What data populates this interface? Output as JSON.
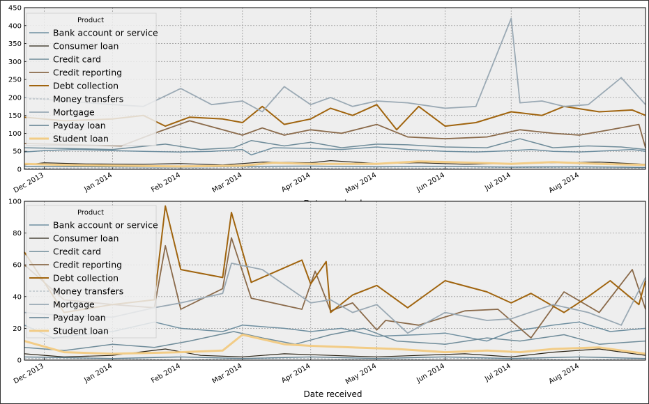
{
  "chart_data": [
    {
      "type": "line",
      "title": "",
      "xlabel": "Date received",
      "ylabel": "",
      "ylim": [
        0,
        450
      ],
      "yticks": [
        "0",
        "50",
        "100",
        "150",
        "200",
        "250",
        "300",
        "350",
        "400",
        "450"
      ],
      "xlim": [
        "2013-11-22",
        "2014-08-31"
      ],
      "xticks": [
        {
          "date": "2013-12-01",
          "label": "Dec 2013"
        },
        {
          "date": "2014-01-01",
          "label": "Jan 2014"
        },
        {
          "date": "2014-02-01",
          "label": "Feb 2014"
        },
        {
          "date": "2014-03-01",
          "label": "Mar 2014"
        },
        {
          "date": "2014-04-01",
          "label": "Apr 2014"
        },
        {
          "date": "2014-05-01",
          "label": "May 2014"
        },
        {
          "date": "2014-06-01",
          "label": "Jun 2014"
        },
        {
          "date": "2014-07-01",
          "label": "Jul 2014"
        },
        {
          "date": "2014-08-01",
          "label": "Aug 2014"
        }
      ],
      "grid": true,
      "legend": {
        "title": "Product",
        "placement": "upper-left"
      },
      "series": [
        {
          "name": "Bank account or service",
          "color": "#6f8fa0",
          "width": 1.5,
          "x": [
            "2013-11-22",
            "2013-12-01",
            "2013-12-15",
            "2014-01-01",
            "2014-01-15",
            "2014-02-01",
            "2014-02-15",
            "2014-03-01",
            "2014-03-05",
            "2014-03-15",
            "2014-04-01",
            "2014-04-15",
            "2014-05-01",
            "2014-05-15",
            "2014-06-01",
            "2014-06-15",
            "2014-07-01",
            "2014-07-10",
            "2014-07-20",
            "2014-08-01",
            "2014-08-15",
            "2014-08-25",
            "2014-08-31"
          ],
          "y": [
            48,
            52,
            55,
            52,
            50,
            48,
            50,
            55,
            40,
            60,
            58,
            55,
            62,
            55,
            50,
            48,
            52,
            55,
            50,
            48,
            52,
            55,
            50
          ]
        },
        {
          "name": "Consumer loan",
          "color": "#2b2416",
          "width": 1.2,
          "x": [
            "2013-11-22",
            "2013-12-01",
            "2013-12-20",
            "2014-01-15",
            "2014-02-01",
            "2014-02-20",
            "2014-03-10",
            "2014-04-01",
            "2014-04-10",
            "2014-05-01",
            "2014-05-20",
            "2014-06-10",
            "2014-07-01",
            "2014-07-20",
            "2014-08-10",
            "2014-08-31"
          ],
          "y": [
            12,
            18,
            15,
            14,
            16,
            12,
            20,
            18,
            24,
            16,
            18,
            14,
            16,
            18,
            20,
            14
          ]
        },
        {
          "name": "Credit card",
          "color": "#6e8b99",
          "width": 1.5,
          "x": [
            "2013-11-22",
            "2013-12-10",
            "2014-01-01",
            "2014-01-25",
            "2014-02-10",
            "2014-02-25",
            "2014-03-05",
            "2014-03-20",
            "2014-04-01",
            "2014-04-15",
            "2014-05-01",
            "2014-05-15",
            "2014-06-01",
            "2014-06-20",
            "2014-07-05",
            "2014-07-20",
            "2014-08-05",
            "2014-08-20",
            "2014-08-31"
          ],
          "y": [
            60,
            58,
            55,
            70,
            55,
            60,
            80,
            65,
            75,
            60,
            70,
            68,
            62,
            60,
            85,
            60,
            65,
            62,
            55
          ]
        },
        {
          "name": "Credit reporting",
          "color": "#8a6a4a",
          "width": 1.8,
          "x": [
            "2013-11-22",
            "2013-12-15",
            "2014-01-05",
            "2014-01-20",
            "2014-02-05",
            "2014-02-20",
            "2014-03-01",
            "2014-03-10",
            "2014-03-20",
            "2014-04-01",
            "2014-04-15",
            "2014-05-01",
            "2014-05-15",
            "2014-06-01",
            "2014-06-20",
            "2014-07-05",
            "2014-07-20",
            "2014-08-01",
            "2014-08-15",
            "2014-08-28",
            "2014-08-31"
          ],
          "y": [
            72,
            68,
            65,
            100,
            135,
            110,
            95,
            115,
            95,
            110,
            100,
            125,
            90,
            85,
            90,
            110,
            100,
            95,
            110,
            125,
            60
          ]
        },
        {
          "name": "Debt collection",
          "color": "#a0640e",
          "width": 2.0,
          "x": [
            "2013-11-22",
            "2013-12-10",
            "2014-01-01",
            "2014-01-15",
            "2014-01-25",
            "2014-02-05",
            "2014-02-20",
            "2014-03-01",
            "2014-03-10",
            "2014-03-20",
            "2014-04-01",
            "2014-04-10",
            "2014-04-20",
            "2014-05-01",
            "2014-05-10",
            "2014-05-20",
            "2014-06-01",
            "2014-06-15",
            "2014-07-01",
            "2014-07-15",
            "2014-07-25",
            "2014-08-10",
            "2014-08-25",
            "2014-08-31"
          ],
          "y": [
            145,
            135,
            140,
            150,
            120,
            145,
            140,
            130,
            175,
            125,
            140,
            170,
            150,
            180,
            110,
            175,
            120,
            130,
            160,
            150,
            175,
            160,
            165,
            150
          ]
        },
        {
          "name": "Money transfers",
          "color": "#a5b1b8",
          "width": 1.0,
          "x": [
            "2013-11-22",
            "2014-01-01",
            "2014-02-01",
            "2014-03-01",
            "2014-04-01",
            "2014-05-01",
            "2014-06-01",
            "2014-07-01",
            "2014-08-01",
            "2014-08-31"
          ],
          "y": [
            3,
            4,
            2,
            5,
            3,
            4,
            3,
            5,
            4,
            3
          ]
        },
        {
          "name": "Mortgage",
          "color": "#9aa9b4",
          "width": 1.8,
          "x": [
            "2013-11-22",
            "2013-12-10",
            "2014-01-01",
            "2014-01-15",
            "2014-02-01",
            "2014-02-15",
            "2014-03-01",
            "2014-03-10",
            "2014-03-20",
            "2014-04-01",
            "2014-04-10",
            "2014-04-20",
            "2014-05-01",
            "2014-05-15",
            "2014-06-01",
            "2014-06-15",
            "2014-07-01",
            "2014-07-05",
            "2014-07-15",
            "2014-07-25",
            "2014-08-05",
            "2014-08-20",
            "2014-08-31"
          ],
          "y": [
            200,
            190,
            180,
            175,
            225,
            180,
            190,
            160,
            230,
            180,
            200,
            175,
            190,
            185,
            170,
            175,
            420,
            185,
            190,
            175,
            180,
            255,
            180
          ]
        },
        {
          "name": "Payday loan",
          "color": "#5f7f8f",
          "width": 1.4,
          "x": [
            "2013-11-22",
            "2014-01-01",
            "2014-02-01",
            "2014-03-01",
            "2014-04-01",
            "2014-05-01",
            "2014-06-01",
            "2014-07-01",
            "2014-08-01",
            "2014-08-31"
          ],
          "y": [
            8,
            7,
            6,
            8,
            9,
            7,
            8,
            6,
            7,
            5
          ]
        },
        {
          "name": "Student loan",
          "color": "#f2cc86",
          "width": 3.0,
          "x": [
            "2013-11-22",
            "2013-12-10",
            "2014-01-01",
            "2014-02-01",
            "2014-03-01",
            "2014-03-15",
            "2014-04-01",
            "2014-05-01",
            "2014-05-20",
            "2014-06-15",
            "2014-07-01",
            "2014-07-20",
            "2014-08-10",
            "2014-08-31"
          ],
          "y": [
            15,
            12,
            10,
            8,
            10,
            18,
            15,
            15,
            22,
            18,
            15,
            20,
            15,
            12
          ]
        }
      ]
    },
    {
      "type": "line",
      "title": "",
      "xlabel": "Date received",
      "ylabel": "",
      "ylim": [
        0,
        100
      ],
      "yticks": [
        "0",
        "20",
        "40",
        "60",
        "80",
        "100"
      ],
      "xlim": [
        "2013-11-22",
        "2014-08-31"
      ],
      "xticks": [
        {
          "date": "2013-12-01",
          "label": "Dec 2013"
        },
        {
          "date": "2014-01-01",
          "label": "Jan 2014"
        },
        {
          "date": "2014-02-01",
          "label": "Feb 2014"
        },
        {
          "date": "2014-03-01",
          "label": "Mar 2014"
        },
        {
          "date": "2014-04-01",
          "label": "Apr 2014"
        },
        {
          "date": "2014-05-01",
          "label": "May 2014"
        },
        {
          "date": "2014-06-01",
          "label": "Jun 2014"
        },
        {
          "date": "2014-07-01",
          "label": "Jul 2014"
        },
        {
          "date": "2014-08-01",
          "label": "Aug 2014"
        }
      ],
      "grid": true,
      "legend": {
        "title": "Product",
        "placement": "upper-left"
      },
      "series": [
        {
          "name": "Bank account or service",
          "color": "#6f8fa0",
          "width": 1.5,
          "x": [
            "2013-11-22",
            "2013-12-05",
            "2014-01-01",
            "2014-01-20",
            "2014-02-01",
            "2014-02-20",
            "2014-03-01",
            "2014-03-20",
            "2014-04-01",
            "2014-04-15",
            "2014-05-01",
            "2014-05-20",
            "2014-06-01",
            "2014-06-20",
            "2014-07-01",
            "2014-07-20",
            "2014-08-01",
            "2014-08-15",
            "2014-08-31"
          ],
          "y": [
            22,
            14,
            18,
            24,
            20,
            18,
            22,
            20,
            18,
            20,
            15,
            16,
            17,
            12,
            18,
            22,
            24,
            18,
            20
          ]
        },
        {
          "name": "Consumer loan",
          "color": "#2b2416",
          "width": 1.2,
          "x": [
            "2013-11-22",
            "2013-12-10",
            "2014-01-01",
            "2014-01-25",
            "2014-02-10",
            "2014-03-01",
            "2014-03-20",
            "2014-04-10",
            "2014-05-01",
            "2014-05-20",
            "2014-06-10",
            "2014-07-01",
            "2014-07-20",
            "2014-08-10",
            "2014-08-31"
          ],
          "y": [
            4,
            2,
            3,
            7,
            3,
            2,
            4,
            3,
            2,
            3,
            4,
            2,
            5,
            7,
            3
          ]
        },
        {
          "name": "Credit card",
          "color": "#6e8b99",
          "width": 1.5,
          "x": [
            "2013-11-22",
            "2013-12-10",
            "2014-01-01",
            "2014-01-20",
            "2014-02-05",
            "2014-02-25",
            "2014-03-10",
            "2014-03-25",
            "2014-04-10",
            "2014-04-25",
            "2014-05-10",
            "2014-06-01",
            "2014-06-20",
            "2014-07-05",
            "2014-07-25",
            "2014-08-10",
            "2014-08-31"
          ],
          "y": [
            8,
            6,
            10,
            8,
            12,
            18,
            14,
            10,
            16,
            20,
            12,
            10,
            14,
            12,
            16,
            10,
            12
          ]
        },
        {
          "name": "Credit reporting",
          "color": "#8a6a4a",
          "width": 1.8,
          "x": [
            "2013-11-22",
            "2013-12-10",
            "2014-01-01",
            "2014-01-20",
            "2014-01-25",
            "2014-02-01",
            "2014-02-20",
            "2014-02-24",
            "2014-03-05",
            "2014-03-28",
            "2014-04-03",
            "2014-04-10",
            "2014-04-20",
            "2014-05-01",
            "2014-05-05",
            "2014-05-20",
            "2014-06-10",
            "2014-06-25",
            "2014-07-10",
            "2014-07-25",
            "2014-08-10",
            "2014-08-25",
            "2014-08-31"
          ],
          "y": [
            60,
            38,
            35,
            33,
            72,
            32,
            45,
            77,
            39,
            32,
            56,
            31,
            36,
            19,
            25,
            22,
            31,
            32,
            14,
            43,
            30,
            57,
            32
          ]
        },
        {
          "name": "Debt collection",
          "color": "#a0640e",
          "width": 2.0,
          "x": [
            "2013-11-22",
            "2013-12-10",
            "2014-01-01",
            "2014-01-20",
            "2014-01-25",
            "2014-02-01",
            "2014-02-20",
            "2014-02-24",
            "2014-03-05",
            "2014-03-28",
            "2014-04-01",
            "2014-04-08",
            "2014-04-10",
            "2014-04-20",
            "2014-05-01",
            "2014-05-15",
            "2014-06-01",
            "2014-06-20",
            "2014-07-01",
            "2014-07-10",
            "2014-07-25",
            "2014-08-05",
            "2014-08-15",
            "2014-08-28",
            "2014-08-31"
          ],
          "y": [
            68,
            30,
            35,
            38,
            97,
            57,
            52,
            93,
            49,
            63,
            48,
            62,
            30,
            41,
            47,
            33,
            50,
            43,
            36,
            42,
            30,
            40,
            50,
            35,
            50
          ]
        },
        {
          "name": "Money transfers",
          "color": "#a5b1b8",
          "width": 1.0,
          "x": [
            "2013-11-22",
            "2014-01-01",
            "2014-02-01",
            "2014-03-01",
            "2014-04-01",
            "2014-05-01",
            "2014-06-01",
            "2014-07-01",
            "2014-08-01",
            "2014-08-31"
          ],
          "y": [
            1,
            1,
            0,
            1,
            1,
            0,
            1,
            1,
            0,
            1
          ]
        },
        {
          "name": "Mortgage",
          "color": "#9aa9b4",
          "width": 1.8,
          "x": [
            "2013-11-22",
            "2013-12-10",
            "2014-01-01",
            "2014-01-20",
            "2014-02-01",
            "2014-02-20",
            "2014-02-24",
            "2014-03-10",
            "2014-04-01",
            "2014-04-10",
            "2014-04-20",
            "2014-05-01",
            "2014-05-15",
            "2014-06-01",
            "2014-06-20",
            "2014-07-01",
            "2014-07-20",
            "2014-08-05",
            "2014-08-20",
            "2014-08-31"
          ],
          "y": [
            30,
            28,
            27,
            33,
            36,
            42,
            61,
            57,
            36,
            38,
            30,
            35,
            17,
            30,
            25,
            26,
            35,
            30,
            22,
            52
          ]
        },
        {
          "name": "Payday loan",
          "color": "#5f7f8f",
          "width": 1.4,
          "x": [
            "2013-11-22",
            "2014-01-01",
            "2014-02-01",
            "2014-03-01",
            "2014-04-01",
            "2014-05-01",
            "2014-06-01",
            "2014-07-01",
            "2014-08-01",
            "2014-08-31"
          ],
          "y": [
            2,
            1,
            2,
            1,
            2,
            1,
            2,
            1,
            2,
            1
          ]
        },
        {
          "name": "Student loan",
          "color": "#f2cc86",
          "width": 3.0,
          "x": [
            "2013-11-22",
            "2013-12-10",
            "2014-01-01",
            "2014-02-01",
            "2014-02-20",
            "2014-03-01",
            "2014-03-20",
            "2014-04-01",
            "2014-04-20",
            "2014-05-10",
            "2014-06-01",
            "2014-06-20",
            "2014-07-05",
            "2014-07-20",
            "2014-08-10",
            "2014-08-31"
          ],
          "y": [
            12,
            5,
            4,
            5,
            6,
            16,
            10,
            9,
            8,
            7,
            5,
            6,
            5,
            7,
            8,
            4
          ]
        }
      ]
    }
  ]
}
